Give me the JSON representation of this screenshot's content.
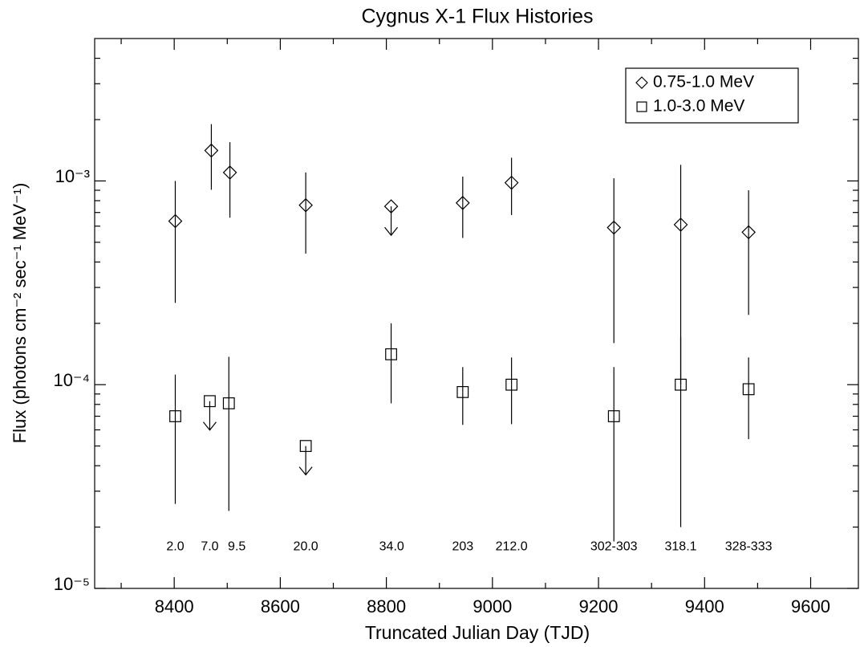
{
  "chart_data": {
    "type": "scatter",
    "title": "Cygnus X-1 Flux Histories",
    "xlabel": "Truncated Julian Day (TJD)",
    "ylabel": "Flux (photons cm⁻² sec⁻¹ MeV⁻¹)",
    "log_y": true,
    "legend": "upper right",
    "xlim": [
      8250,
      9690
    ],
    "xticks": [
      8400,
      8600,
      8800,
      9000,
      9200,
      9400,
      9600
    ],
    "xminor_ticks": [
      8300,
      8500,
      8700,
      8900,
      9100,
      9300,
      9500
    ],
    "ylim": [
      1e-05,
      0.005
    ],
    "yticks": [
      {
        "value": 1e-05,
        "label": "10⁻⁵"
      },
      {
        "value": 0.0001,
        "label": "10⁻⁴"
      },
      {
        "value": 0.001,
        "label": "10⁻³"
      }
    ],
    "yminor_ticks": [
      2e-05,
      3e-05,
      4e-05,
      5e-05,
      6e-05,
      7e-05,
      8e-05,
      9e-05,
      0.0002,
      0.0003,
      0.0004,
      0.0005,
      0.0006,
      0.0007,
      0.0008,
      0.0009,
      0.002,
      0.003,
      0.004
    ],
    "series": [
      {
        "name": "0.75-1.0 MeV",
        "marker": "diamond",
        "color": "#000000",
        "x": [
          8402,
          8470,
          8505,
          8648,
          8809,
          8944,
          9036,
          9229,
          9355,
          9483
        ],
        "values": [
          0.000635,
          0.00141,
          0.0011,
          0.00076,
          0.00075,
          0.00078,
          0.00098,
          0.00059,
          0.00061,
          0.00056
        ],
        "err_high": [
          0.001,
          0.0019,
          0.00155,
          0.0011,
          null,
          0.00105,
          0.0013,
          0.00103,
          0.0012,
          0.0009
        ],
        "err_low": [
          0.000252,
          0.000905,
          0.00066,
          0.00044,
          null,
          0.000525,
          0.00068,
          0.00016,
          0.0001,
          0.00022
        ],
        "upper_limit": [
          false,
          false,
          false,
          false,
          true,
          false,
          false,
          false,
          false,
          false
        ]
      },
      {
        "name": "1.0-3.0 MeV",
        "marker": "square",
        "color": "#000000",
        "x": [
          8402,
          8467,
          8503,
          8648,
          8809,
          8944,
          9036,
          9229,
          9355,
          9483
        ],
        "values": [
          7e-05,
          8.3e-05,
          8.1e-05,
          5e-05,
          0.000141,
          9.2e-05,
          0.0001,
          7e-05,
          0.0001,
          9.5e-05
        ],
        "err_high": [
          0.000112,
          null,
          0.000137,
          null,
          0.0002,
          0.000122,
          0.000136,
          0.000122,
          0.000172,
          0.000136
        ],
        "err_low": [
          2.6e-05,
          null,
          2.4e-05,
          null,
          8.1e-05,
          6.35e-05,
          6.4e-05,
          1.7e-05,
          2e-05,
          5.4e-05
        ],
        "upper_limit": [
          false,
          true,
          false,
          true,
          false,
          false,
          false,
          false,
          false,
          false
        ]
      }
    ],
    "annotations": [
      {
        "text": "2.0",
        "x": 8402,
        "y": 1.6e-05
      },
      {
        "text": "7.0",
        "x": 8467,
        "y": 1.6e-05
      },
      {
        "text": "9.5",
        "x": 8518,
        "y": 1.6e-05
      },
      {
        "text": "20.0",
        "x": 8648,
        "y": 1.6e-05
      },
      {
        "text": "34.0",
        "x": 8810,
        "y": 1.6e-05
      },
      {
        "text": "203",
        "x": 8944,
        "y": 1.6e-05
      },
      {
        "text": "212.0",
        "x": 9036,
        "y": 1.6e-05
      },
      {
        "text": "302-303",
        "x": 9229,
        "y": 1.6e-05
      },
      {
        "text": "318.1",
        "x": 9355,
        "y": 1.6e-05
      },
      {
        "text": "328-333",
        "x": 9483,
        "y": 1.6e-05
      }
    ]
  }
}
